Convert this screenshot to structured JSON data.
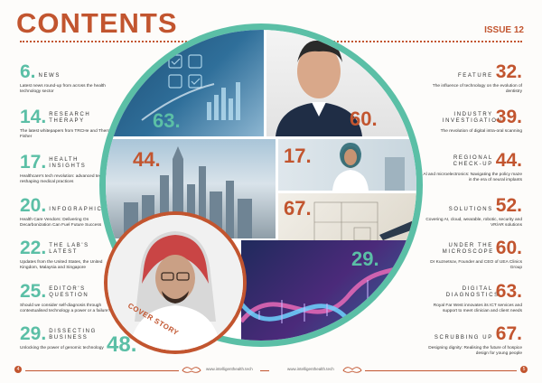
{
  "header": {
    "title": "CONTENTS",
    "issue": "ISSUE 12"
  },
  "left_items": [
    {
      "num": "6.",
      "label": "NEWS",
      "desc": "Latest news round-up from across the health technology sector"
    },
    {
      "num": "14.",
      "label": "RESEARCH THERAPY",
      "desc": "The latest whitepapers from TRCHe and Thermo Fisher"
    },
    {
      "num": "17.",
      "label": "HEALTH INSIGHTS",
      "desc": "Healthcare's tech revolution: advanced technologies reshaping medical practices"
    },
    {
      "num": "20.",
      "label": "INFOGRAPHIC",
      "desc": "Health Care Vendors: Delivering On Decarbonization Can Fuel Future Success"
    },
    {
      "num": "22.",
      "label": "THE LAB'S LATEST",
      "desc": "Updates from the United States, the United Kingdom, Malaysia and Singapore"
    },
    {
      "num": "25.",
      "label": "EDITOR'S QUESTION",
      "desc": "Should we consider self-diagnosis through contextualised technology a power or a failure?"
    },
    {
      "num": "29.",
      "label": "DISSECTING BUSINESS",
      "desc": "Unlocking the power of genomic technology"
    }
  ],
  "right_items": [
    {
      "num": "32.",
      "label": "FEATURE",
      "desc": "The influence of technology on the evolution of dentistry"
    },
    {
      "num": "39.",
      "label": "INDUSTRY INVESTIGATION",
      "desc": "The revolution of digital intra-oral scanning"
    },
    {
      "num": "44.",
      "label": "REGIONAL CHECK-UP",
      "desc": "Al and microelectronics: Navigating the policy maze in the era of neural implants"
    },
    {
      "num": "52.",
      "label": "SOLUTIONS",
      "desc": "Covering AI, cloud, wearable, robotic, security and VR/AR solutions"
    },
    {
      "num": "60.",
      "label": "UNDER THE MICROSCOPE",
      "desc": "Dr Kuznetsov, Founder and CEO of UEA Clinics Group"
    },
    {
      "num": "63.",
      "label": "DIGITAL DIAGNOSTICS",
      "desc": "Royal Far West innovates its ICT services and support to meet clinician and client needs"
    },
    {
      "num": "67.",
      "label": "SCRUBBING UP",
      "desc": "Designing dignity: Realising the future of hospice design for young people"
    }
  ],
  "tiles": {
    "t1_num": "63.",
    "t2_num": "60.",
    "t3_num": "44.",
    "t4_num": "17.",
    "t5_num": "67.",
    "t6_num": "29."
  },
  "cover": {
    "label": "COVER STORY",
    "num": "48."
  },
  "footer": {
    "left_page": "4",
    "left_url": "www.intelligenthealth.tech",
    "right_url": "www.intelligenthealth.tech",
    "right_page": "5"
  },
  "colors": {
    "accent": "#c2552f",
    "teal": "#5bbfa6"
  }
}
